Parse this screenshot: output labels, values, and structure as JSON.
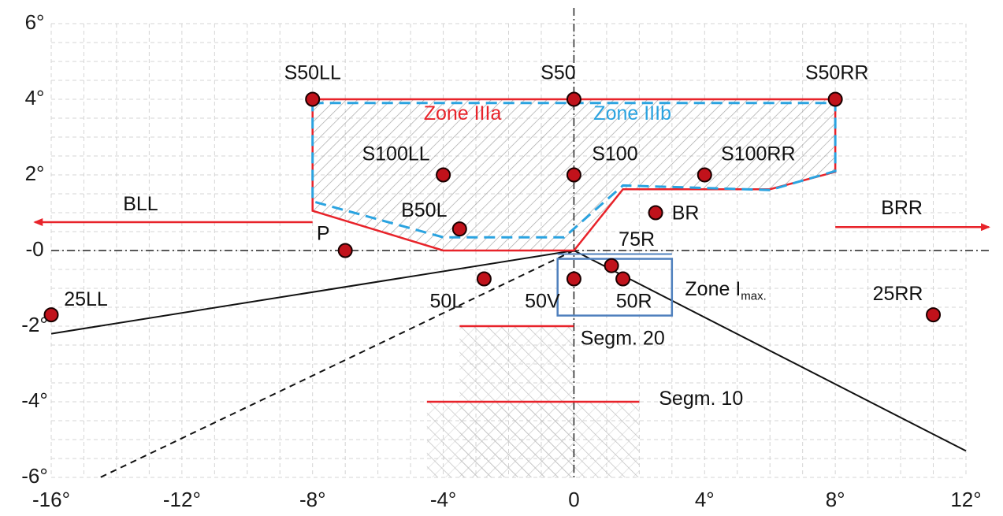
{
  "chart_data": {
    "type": "scatter",
    "xlim": [
      -16,
      12
    ],
    "ylim": [
      -6,
      6
    ],
    "grid": true,
    "x_ticks": [
      {
        "value": -16,
        "label": "-16°"
      },
      {
        "value": -12,
        "label": "-12°"
      },
      {
        "value": -8,
        "label": "-8°"
      },
      {
        "value": -4,
        "label": "-4°"
      },
      {
        "value": 0,
        "label": "0"
      },
      {
        "value": 4,
        "label": "4°"
      },
      {
        "value": 8,
        "label": "8°"
      },
      {
        "value": 12,
        "label": "12°"
      }
    ],
    "y_ticks": [
      {
        "value": 6,
        "label": "6°"
      },
      {
        "value": 4,
        "label": "4°"
      },
      {
        "value": 2,
        "label": "2°"
      },
      {
        "value": 0,
        "label": "-0"
      },
      {
        "value": -2,
        "label": "-2°"
      },
      {
        "value": -4,
        "label": "-4°"
      },
      {
        "value": -6,
        "label": "-6°"
      }
    ],
    "points": [
      {
        "name": "S50LL",
        "x": -8,
        "y": 4
      },
      {
        "name": "S50",
        "x": 0,
        "y": 4
      },
      {
        "name": "S50RR",
        "x": 8,
        "y": 4
      },
      {
        "name": "S100LL",
        "x": -4,
        "y": 2
      },
      {
        "name": "S100",
        "x": 0,
        "y": 2
      },
      {
        "name": "S100RR",
        "x": 4,
        "y": 2
      },
      {
        "name": "B50L",
        "x": -3.5,
        "y": 0.57
      },
      {
        "name": "BR",
        "x": 2.5,
        "y": 1
      },
      {
        "name": "P",
        "x": -7,
        "y": 0
      },
      {
        "name": "75R",
        "x": 1.15,
        "y": -0.4
      },
      {
        "name": "50R",
        "x": 1.5,
        "y": -0.75
      },
      {
        "name": "50V",
        "x": 0,
        "y": -0.75
      },
      {
        "name": "50L",
        "x": -2.75,
        "y": -0.75
      },
      {
        "name": "25LL",
        "x": -16,
        "y": -1.7
      },
      {
        "name": "25RR",
        "x": 11,
        "y": -1.7
      }
    ],
    "arrows": [
      {
        "name": "BLL",
        "from": [
          -8,
          0.75
        ],
        "to": [
          -16.5,
          0.75
        ]
      },
      {
        "name": "BRR",
        "from": [
          8,
          0.62
        ],
        "to": [
          12.7,
          0.62
        ]
      }
    ],
    "zones": [
      {
        "name": "Zone IIIa",
        "color": "#e8232a",
        "polygon": [
          [
            -8,
            4
          ],
          [
            8,
            4
          ],
          [
            8,
            2.08
          ],
          [
            6,
            1.62
          ],
          [
            1.5,
            1.62
          ],
          [
            0,
            0
          ],
          [
            -4,
            0
          ],
          [
            -8,
            1.05
          ]
        ]
      },
      {
        "name": "Zone IIIb",
        "color": "#2aa3e0",
        "polygon": [
          [
            -8,
            3.9
          ],
          [
            8,
            3.9
          ],
          [
            8,
            2.1
          ],
          [
            6,
            1.6
          ],
          [
            1.5,
            1.72
          ],
          [
            -0.3,
            0.35
          ],
          [
            -4,
            0.35
          ],
          [
            -8,
            1.3
          ]
        ]
      },
      {
        "name": "Zone I",
        "subscript": "max.",
        "color": "#4f80bd",
        "rect": [
          -0.5,
          3,
          -1.72,
          -0.22
        ]
      }
    ],
    "segments": [
      {
        "name": "Segm. 20",
        "y": -2,
        "x_from": -3.5,
        "x_to": 0,
        "hatch_x": [
          -3.5,
          0
        ],
        "hatch_y": [
          -6,
          -2
        ]
      },
      {
        "name": "Segm. 10",
        "y": -4,
        "x_from": -4.5,
        "x_to": 2,
        "hatch_x": [
          -4.5,
          2
        ],
        "hatch_y": [
          -6,
          -4
        ]
      }
    ],
    "cutoff_lines": [
      {
        "style": "solid",
        "from": [
          -16,
          -2.2
        ],
        "to": [
          0,
          0
        ]
      },
      {
        "style": "solid",
        "from": [
          0,
          0
        ],
        "to": [
          12,
          -5.3
        ]
      },
      {
        "style": "dashed",
        "from": [
          0,
          0
        ],
        "to": [
          -14.5,
          -6
        ]
      }
    ]
  }
}
